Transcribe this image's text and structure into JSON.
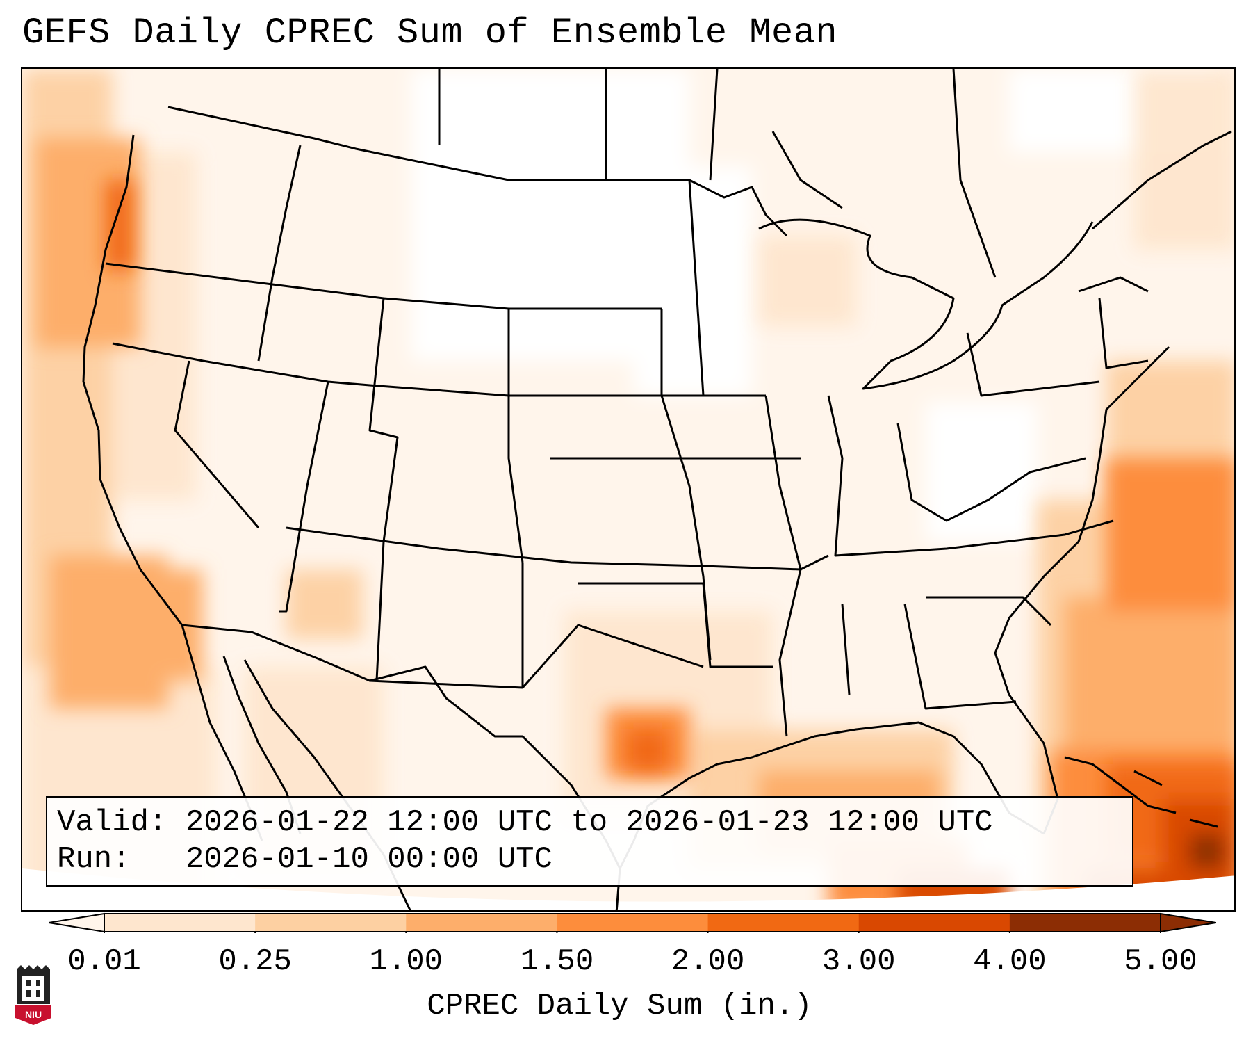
{
  "title": "GEFS Daily CPREC Sum of Ensemble Mean",
  "info": {
    "valid_label": "Valid:",
    "valid_value": "2026-01-22 12:00 UTC to 2026-01-23 12:00 UTC",
    "run_label": "Run:",
    "run_value": "2026-01-10 00:00 UTC"
  },
  "colorbar": {
    "ticks": [
      "0.01",
      "0.25",
      "1.00",
      "1.50",
      "2.00",
      "3.00",
      "4.00",
      "5.00"
    ],
    "colors": [
      "#fff5eb",
      "#fee6ce",
      "#fdd0a2",
      "#fdae6b",
      "#fd8d3c",
      "#f16913",
      "#d94801",
      "#8c2d04"
    ],
    "label": "CPREC Daily Sum (in.)",
    "extend": "both"
  },
  "logo": {
    "text": "NIU",
    "color": "#c8102e"
  }
}
